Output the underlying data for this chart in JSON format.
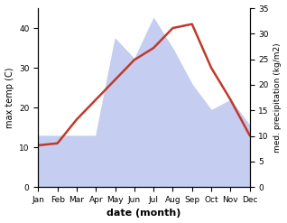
{
  "months": [
    "Jan",
    "Feb",
    "Mar",
    "Apr",
    "May",
    "Jun",
    "Jul",
    "Aug",
    "Sep",
    "Oct",
    "Nov",
    "Dec"
  ],
  "month_indices": [
    1,
    2,
    3,
    4,
    5,
    6,
    7,
    8,
    9,
    10,
    11,
    12
  ],
  "temperature": [
    10.5,
    11.0,
    17.0,
    22.0,
    27.0,
    32.0,
    35.0,
    40.0,
    41.0,
    30.0,
    22.0,
    13.0
  ],
  "precipitation": [
    10.0,
    10.0,
    10.0,
    10.0,
    29.0,
    25.0,
    33.0,
    27.0,
    20.0,
    15.0,
    17.0,
    12.0
  ],
  "temp_color": "#c0392b",
  "precip_fill_color": "#c5cdf0",
  "temp_ylim": [
    0,
    45
  ],
  "precip_ylim": [
    0,
    35
  ],
  "temp_yticks": [
    0,
    10,
    20,
    30,
    40
  ],
  "precip_yticks": [
    0,
    5,
    10,
    15,
    20,
    25,
    30,
    35
  ],
  "xlabel": "date (month)",
  "ylabel_left": "max temp (C)",
  "ylabel_right": "med. precipitation (kg/m2)",
  "background_color": "#ffffff"
}
